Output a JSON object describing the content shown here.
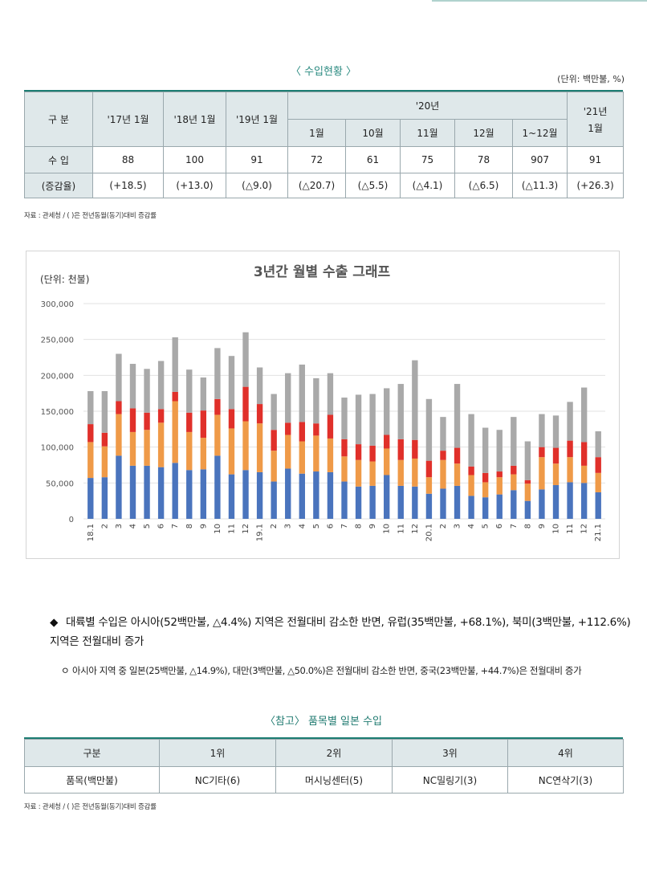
{
  "import_status": {
    "title": "〈 수입현황 〉",
    "unit": "(단위: 백만불, %)",
    "header": {
      "category": "구 분",
      "y17": "'17년 1월",
      "y18": "'18년 1월",
      "y19": "'19년 1월",
      "y20": "'20년",
      "y21_line1": "'21년",
      "y21_line2": "1월",
      "months": [
        "1월",
        "10월",
        "11월",
        "12월",
        "1~12월"
      ]
    },
    "import_row": {
      "label": "수 입",
      "values": [
        "88",
        "100",
        "91",
        "72",
        "61",
        "75",
        "78",
        "907",
        "91"
      ]
    },
    "growth_row": {
      "label": "(증감율)",
      "values": [
        "(+18.5)",
        "(+13.0)",
        "(△9.0)",
        "(△20.7)",
        "(△5.5)",
        "(△4.1)",
        "(△6.5)",
        "(△11.3)",
        "(+26.3)"
      ]
    },
    "source": "자료 : 관세청 / ( )은 전년동월(동기)대비 증감률"
  },
  "chart_data": {
    "type": "bar",
    "stacked": true,
    "title": "3년간 월별 수출 그래프",
    "unit_label": "(단위: 천불)",
    "ylim": [
      0,
      300000
    ],
    "y_ticks": [
      "0",
      "50,000",
      "100,000",
      "150,000",
      "200,000",
      "250,000",
      "300,000"
    ],
    "grid": true,
    "colors": [
      "#4a74bd",
      "#ef9a48",
      "#e0302a",
      "#a9a9a9"
    ],
    "categories": [
      "18.1",
      "2",
      "3",
      "4",
      "5",
      "6",
      "7",
      "8",
      "9",
      "10",
      "11",
      "12",
      "19.1",
      "2",
      "3",
      "4",
      "5",
      "6",
      "7",
      "8",
      "9",
      "10",
      "11",
      "12",
      "20.1",
      "2",
      "3",
      "4",
      "5",
      "6",
      "7",
      "8",
      "9",
      "10",
      "11",
      "12",
      "21.1"
    ],
    "series": [
      {
        "values": [
          57000,
          58000,
          88000,
          74000,
          74000,
          72000,
          78000,
          68000,
          69000,
          88000,
          62000,
          68000,
          65000,
          52000,
          70000,
          63000,
          66000,
          65000,
          52000,
          45000,
          46000,
          61000,
          46000,
          45000,
          35000,
          42000,
          46000,
          32000,
          30000,
          34000,
          40000,
          25000,
          41000,
          47000,
          51000,
          50000,
          37000
        ]
      },
      {
        "values": [
          50000,
          43000,
          58000,
          47000,
          50000,
          62000,
          86000,
          53000,
          44000,
          57000,
          64000,
          68000,
          68000,
          43000,
          47000,
          45000,
          50000,
          47000,
          35000,
          37000,
          34000,
          37000,
          36000,
          39000,
          23000,
          40000,
          31000,
          29000,
          21000,
          24000,
          22000,
          24000,
          45000,
          30000,
          35000,
          24000,
          27000
        ]
      },
      {
        "values": [
          25000,
          19000,
          18000,
          33000,
          24000,
          19000,
          13000,
          27000,
          38000,
          22000,
          27000,
          48000,
          27000,
          29000,
          17000,
          27000,
          17000,
          33000,
          24000,
          22000,
          22000,
          19000,
          29000,
          26000,
          23000,
          13000,
          22000,
          12000,
          13000,
          8000,
          12000,
          5000,
          14000,
          22000,
          23000,
          33000,
          22000
        ]
      },
      {
        "values": [
          46000,
          58000,
          66000,
          62000,
          61000,
          67000,
          76000,
          60000,
          46000,
          71000,
          74000,
          76000,
          51000,
          50000,
          69000,
          80000,
          63000,
          58000,
          58000,
          69000,
          72000,
          65000,
          77000,
          111000,
          86000,
          47000,
          89000,
          73000,
          63000,
          58000,
          68000,
          54000,
          46000,
          45000,
          54000,
          76000,
          36000
        ]
      }
    ]
  },
  "body": {
    "bullet_symbol": "◆",
    "main_text": "대륙별 수입은 아시아(52백만불, △4.4%) 지역은 전월대비 감소한 반면, 유럽(35백만불, +68.1%), 북미(3백만불, +112.6%) 지역은 전월대비 증가",
    "sub_symbol": "ㅇ",
    "sub_text": "아시아 지역 중 일본(25백만불, △14.9%), 대만(3백만불, △50.0%)은 전월대비 감소한 반면, 중국(23백만불, +44.7%)은 전월대비 증가"
  },
  "japan_items": {
    "title": "〈참고〉 품목별 일본 수입",
    "header": [
      "구분",
      "1위",
      "2위",
      "3위",
      "4위"
    ],
    "row": [
      "품목(백만불)",
      "NC기타(6)",
      "머시닝센터(5)",
      "NC밀링기(3)",
      "NC연삭기(3)"
    ],
    "source": "자료 : 관세청 / ( )은 전년동월(동기)대비 증감률"
  }
}
